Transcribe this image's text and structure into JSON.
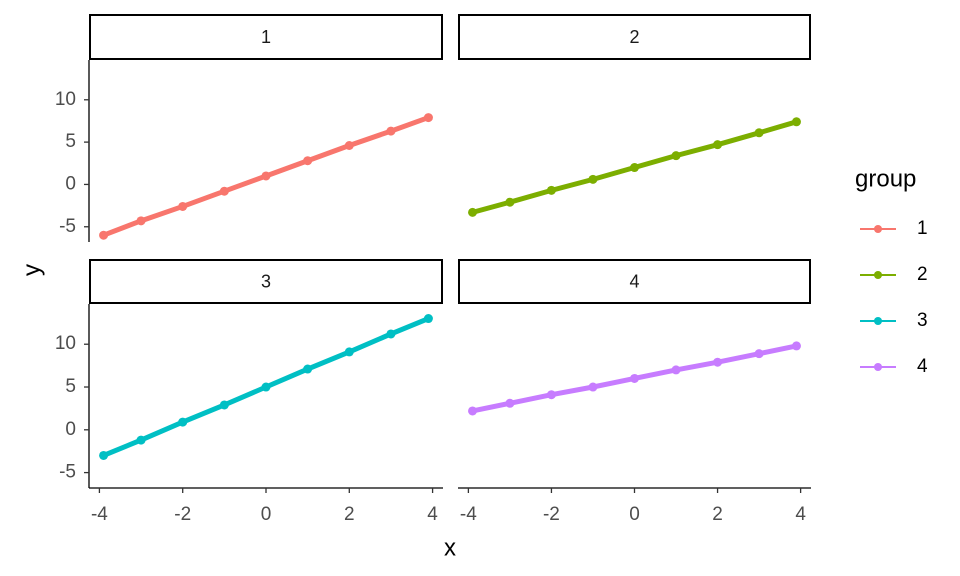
{
  "chart_data": {
    "type": "line",
    "xlabel": "x",
    "ylabel": "y",
    "legend_title": "group",
    "xlim": [
      -4.25,
      4.25
    ],
    "xticks": [
      -4,
      -2,
      0,
      2,
      4
    ],
    "ylim": [
      -6.8,
      14.7
    ],
    "yticks": [
      -5,
      0,
      5,
      10
    ],
    "grid": false,
    "legend": "right",
    "series": [
      {
        "name": "1",
        "color": "#F8766D",
        "x": [
          -3.9,
          -3,
          -2,
          -1,
          0,
          1,
          2,
          3,
          3.9
        ],
        "values": [
          -6,
          -4.3,
          -2.6,
          -0.8,
          1,
          2.8,
          4.6,
          6.3,
          7.9
        ]
      },
      {
        "name": "2",
        "color": "#7CAE00",
        "x": [
          -3.9,
          -3,
          -2,
          -1,
          0,
          1,
          2,
          3,
          3.9
        ],
        "values": [
          -3.3,
          -2.1,
          -0.7,
          0.6,
          2,
          3.4,
          4.7,
          6.1,
          7.4
        ]
      },
      {
        "name": "3",
        "color": "#00BFC4",
        "x": [
          -3.9,
          -3,
          -2,
          -1,
          0,
          1,
          2,
          3,
          3.9
        ],
        "values": [
          -3,
          -1.2,
          0.9,
          2.9,
          5,
          7.1,
          9.1,
          11.2,
          13
        ]
      },
      {
        "name": "4",
        "color": "#C77CFF",
        "x": [
          -3.9,
          -3,
          -2,
          -1,
          0,
          1,
          2,
          3,
          3.9
        ],
        "values": [
          2.2,
          3.1,
          4.1,
          5,
          6,
          7,
          7.9,
          8.9,
          9.8
        ]
      }
    ]
  }
}
